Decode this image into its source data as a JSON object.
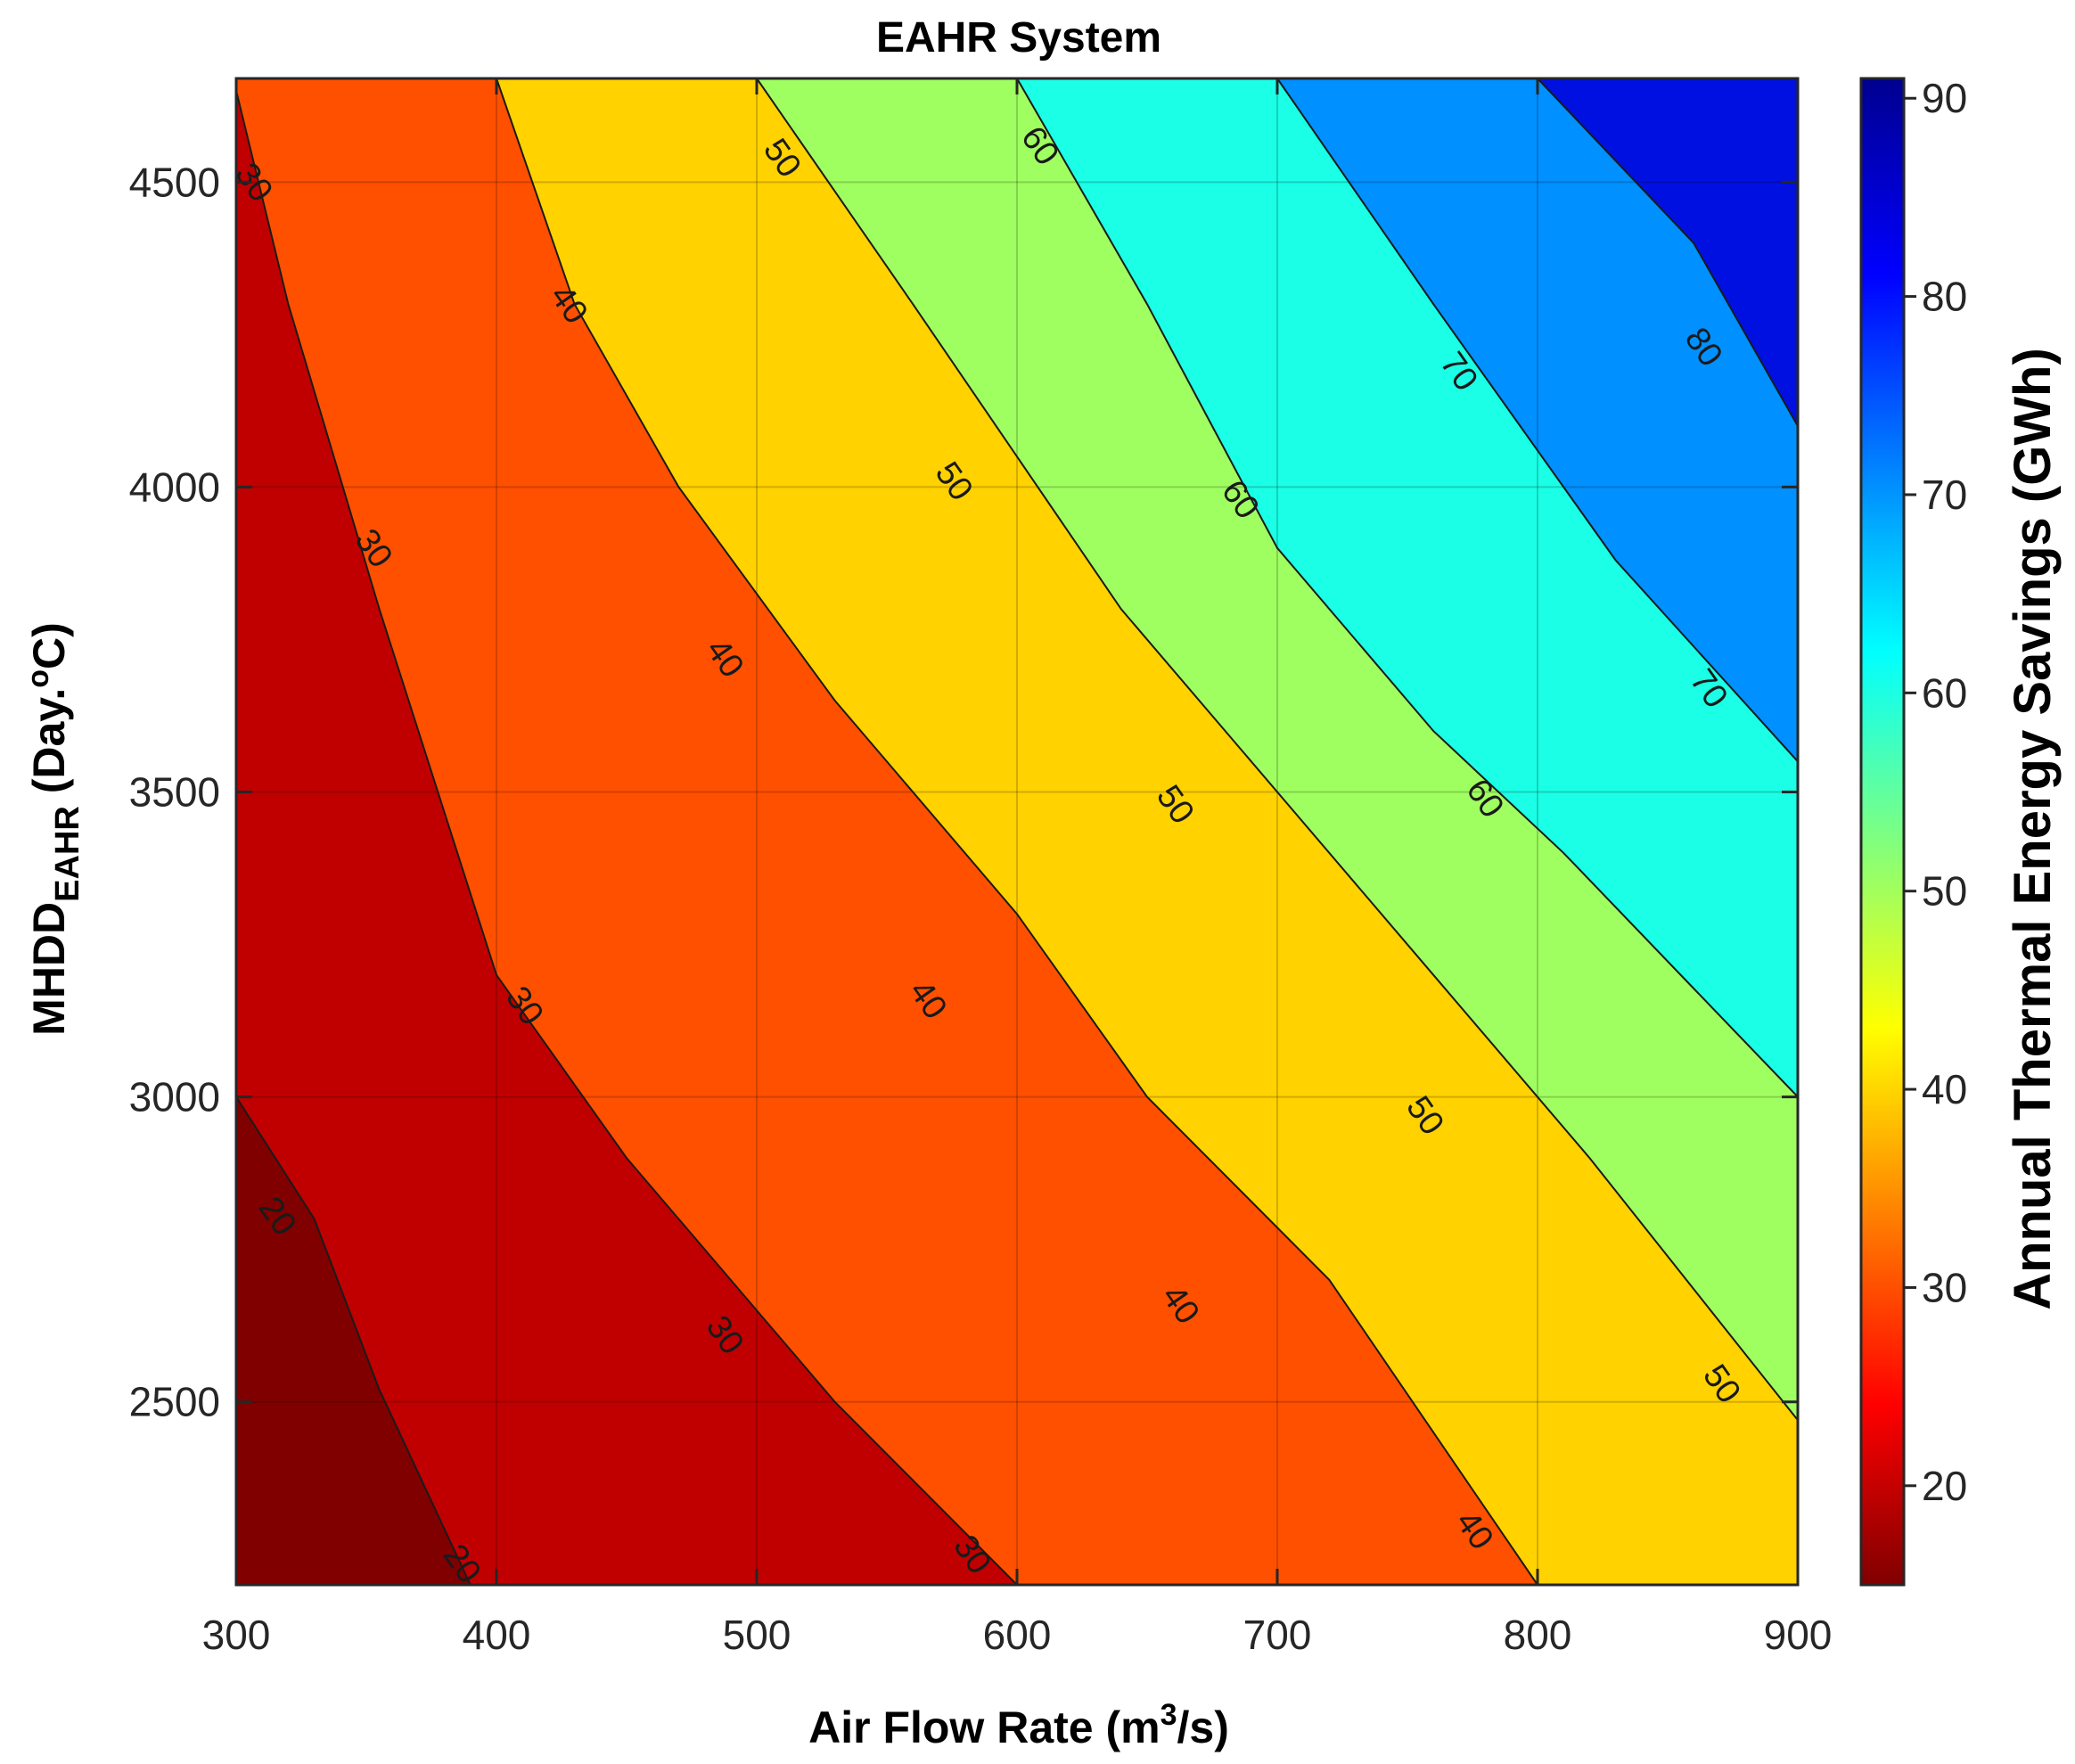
{
  "chart_data": {
    "type": "contour",
    "title": "EAHR System",
    "xlabel": {
      "main": "Air Flow Rate (m",
      "sup": "3",
      "tail": "/s)"
    },
    "ylabel": {
      "main": "MHDD",
      "sub": "EAHR",
      "tail": " (Day.",
      "sup": "o",
      "end": "C)"
    },
    "colorbar_label": "Annual Thermal Energy Savings (GWh)",
    "xlim": [
      300,
      900
    ],
    "ylim": [
      2200,
      4670
    ],
    "clim": [
      15,
      91
    ],
    "colormap": "jet",
    "grid": true,
    "x_ticks": [
      300,
      400,
      500,
      600,
      700,
      800,
      900
    ],
    "y_ticks": [
      2500,
      3000,
      3500,
      4000,
      4500
    ],
    "cb_ticks": [
      20,
      30,
      40,
      50,
      60,
      70,
      80,
      90
    ],
    "regions": [
      {
        "name": "<20",
        "color": "#800000"
      },
      {
        "name": "20-30",
        "color": "#C00000"
      },
      {
        "name": "30-40",
        "color": "#FF5000"
      },
      {
        "name": "40-50",
        "color": "#FFD200"
      },
      {
        "name": "50-60",
        "color": "#A0FF60"
      },
      {
        "name": "60-70",
        "color": "#1AFFE6"
      },
      {
        "name": "70-80",
        "color": "#0090FF"
      },
      {
        "name": ">80",
        "color": "#0010E0"
      }
    ],
    "contours": [
      {
        "level": 20,
        "points": [
          [
            300,
            3000
          ],
          [
            330,
            2800
          ],
          [
            355,
            2520
          ],
          [
            390,
            2200
          ]
        ],
        "labels": [
          [
            316,
            2805
          ],
          [
            387,
            2235
          ]
        ]
      },
      {
        "level": 30,
        "points": [
          [
            300,
            4650
          ],
          [
            320,
            4300
          ],
          [
            355,
            3800
          ],
          [
            400,
            3200
          ],
          [
            450,
            2900
          ],
          [
            530,
            2500
          ],
          [
            600,
            2200
          ]
        ],
        "labels": [
          [
            307,
            4500
          ],
          [
            353,
            3900
          ],
          [
            411,
            3150
          ],
          [
            488,
            2610
          ],
          [
            583,
            2250
          ]
        ]
      },
      {
        "level": 40,
        "points": [
          [
            400,
            4670
          ],
          [
            430,
            4300
          ],
          [
            470,
            4000
          ],
          [
            530,
            3650
          ],
          [
            600,
            3300
          ],
          [
            650,
            3000
          ],
          [
            720,
            2700
          ],
          [
            800,
            2200
          ]
        ],
        "labels": [
          [
            428,
            4300
          ],
          [
            488,
            3720
          ],
          [
            566,
            3160
          ],
          [
            663,
            2660
          ],
          [
            776,
            2290
          ]
        ]
      },
      {
        "level": 50,
        "points": [
          [
            500,
            4670
          ],
          [
            560,
            4300
          ],
          [
            640,
            3800
          ],
          [
            700,
            3500
          ],
          [
            760,
            3200
          ],
          [
            820,
            2900
          ],
          [
            900,
            2470
          ]
        ],
        "labels": [
          [
            510,
            4540
          ],
          [
            576,
            4010
          ],
          [
            661,
            3480
          ],
          [
            757,
            2970
          ],
          [
            871,
            2530
          ]
        ]
      },
      {
        "level": 60,
        "points": [
          [
            600,
            4670
          ],
          [
            650,
            4300
          ],
          [
            700,
            3900
          ],
          [
            760,
            3600
          ],
          [
            810,
            3400
          ],
          [
            900,
            3000
          ]
        ],
        "labels": [
          [
            609,
            4560
          ],
          [
            686,
            3980
          ],
          [
            780,
            3490
          ]
        ]
      },
      {
        "level": 70,
        "points": [
          [
            700,
            4670
          ],
          [
            760,
            4300
          ],
          [
            830,
            3880
          ],
          [
            900,
            3550
          ]
        ],
        "labels": [
          [
            770,
            4190
          ],
          [
            866,
            3670
          ]
        ]
      },
      {
        "level": 80,
        "points": [
          [
            800,
            4670
          ],
          [
            860,
            4400
          ],
          [
            900,
            4100
          ]
        ],
        "labels": [
          [
            864,
            4230
          ]
        ]
      }
    ]
  }
}
